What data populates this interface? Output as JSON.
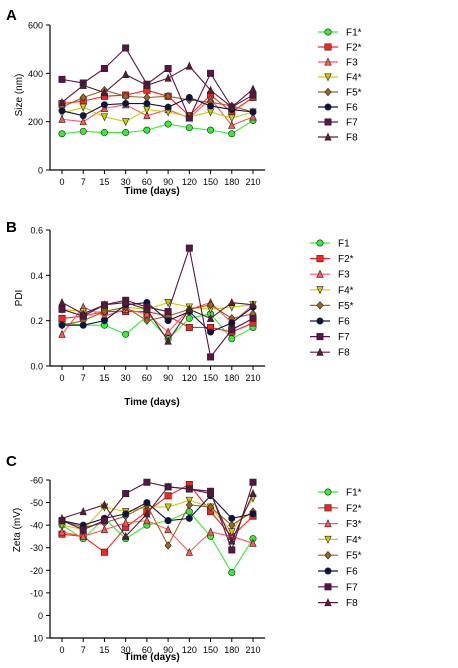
{
  "figure": {
    "x_categories": [
      "0",
      "7",
      "15",
      "30",
      "60",
      "90",
      "120",
      "150",
      "180",
      "210"
    ],
    "series_styles": [
      {
        "color": "#33ee33",
        "marker": "circle"
      },
      {
        "color": "#ff2222",
        "marker": "square"
      },
      {
        "color": "#ff5555",
        "marker": "triangle-up"
      },
      {
        "color": "#cccc00",
        "marker": "triangle-down"
      },
      {
        "color": "#a0641e",
        "marker": "diamond"
      },
      {
        "color": "#0d1445",
        "marker": "circle"
      },
      {
        "color": "#5a1446",
        "marker": "square"
      },
      {
        "color": "#5a1a3a",
        "marker": "triangle-up"
      }
    ]
  },
  "chart_data": [
    {
      "panel_label": "A",
      "type": "line",
      "xlabel": "Time (days)",
      "ylabel": "Size (nm)",
      "ylim": [
        0,
        600
      ],
      "yticks": [
        0,
        200,
        400,
        600
      ],
      "ytick_labels": [
        "0",
        "200",
        "400",
        "600"
      ],
      "categories": [
        "0",
        "7",
        "15",
        "30",
        "60",
        "90",
        "120",
        "150",
        "180",
        "210"
      ],
      "legend_position": "right",
      "series": [
        {
          "name": "F1*",
          "values": [
            150,
            160,
            155,
            155,
            165,
            190,
            175,
            165,
            150,
            205
          ]
        },
        {
          "name": "F2*",
          "values": [
            275,
            285,
            305,
            310,
            330,
            305,
            225,
            310,
            240,
            300
          ]
        },
        {
          "name": "F3",
          "values": [
            210,
            200,
            255,
            270,
            225,
            250,
            215,
            295,
            185,
            220
          ]
        },
        {
          "name": "F4*",
          "values": [
            235,
            260,
            220,
            200,
            250,
            240,
            220,
            240,
            215,
            240
          ]
        },
        {
          "name": "F5*",
          "values": [
            260,
            300,
            330,
            305,
            300,
            305,
            290,
            280,
            265,
            240
          ]
        },
        {
          "name": "F6",
          "values": [
            245,
            225,
            270,
            275,
            275,
            260,
            300,
            265,
            250,
            240
          ]
        },
        {
          "name": "F7",
          "values": [
            375,
            360,
            420,
            505,
            355,
            420,
            215,
            400,
            260,
            310
          ]
        },
        {
          "name": "F8",
          "values": [
            280,
            350,
            320,
            395,
            350,
            380,
            430,
            330,
            260,
            335
          ]
        }
      ]
    },
    {
      "panel_label": "B",
      "type": "line",
      "xlabel": "Time (days)",
      "ylabel": "PDI",
      "ylim": [
        0,
        0.6
      ],
      "yticks": [
        0,
        0.2,
        0.4,
        0.6
      ],
      "ytick_labels": [
        "0.0",
        "0.2",
        "0.4",
        "0.6"
      ],
      "categories": [
        "0",
        "7",
        "15",
        "30",
        "60",
        "90",
        "120",
        "150",
        "180",
        "210"
      ],
      "legend_position": "right",
      "series": [
        {
          "name": "F1",
          "values": [
            0.19,
            0.18,
            0.18,
            0.14,
            0.22,
            0.12,
            0.21,
            0.23,
            0.12,
            0.17
          ]
        },
        {
          "name": "F2*",
          "values": [
            0.21,
            0.22,
            0.24,
            0.24,
            0.24,
            0.22,
            0.17,
            0.17,
            0.15,
            0.19
          ]
        },
        {
          "name": "F3",
          "values": [
            0.14,
            0.26,
            0.22,
            0.25,
            0.23,
            0.15,
            0.25,
            0.28,
            0.19,
            0.27
          ]
        },
        {
          "name": "F4*",
          "values": [
            0.25,
            0.24,
            0.24,
            0.26,
            0.25,
            0.28,
            0.26,
            0.25,
            0.26,
            0.27
          ]
        },
        {
          "name": "F5*",
          "values": [
            0.18,
            0.2,
            0.24,
            0.26,
            0.2,
            0.22,
            0.25,
            0.27,
            0.21,
            0.23
          ]
        },
        {
          "name": "F6",
          "values": [
            0.18,
            0.18,
            0.2,
            0.27,
            0.28,
            0.2,
            0.24,
            0.15,
            0.19,
            0.26
          ]
        },
        {
          "name": "F7",
          "values": [
            0.25,
            0.22,
            0.27,
            0.29,
            0.26,
            0.24,
            0.52,
            0.04,
            0.16,
            0.21
          ]
        },
        {
          "name": "F8",
          "values": [
            0.28,
            0.23,
            0.27,
            0.28,
            0.25,
            0.11,
            0.25,
            0.21,
            0.28,
            0.27
          ]
        }
      ]
    },
    {
      "panel_label": "C",
      "type": "line",
      "xlabel": "Time (days)",
      "ylabel": "Zeta (mV)",
      "ylim": [
        -60,
        10
      ],
      "y_axis_inverted": true,
      "yticks": [
        -60,
        -50,
        -40,
        -30,
        -20,
        -10,
        0,
        10
      ],
      "ytick_labels": [
        "-60",
        "-50",
        "-40",
        "-30",
        "-20",
        "-10",
        "0",
        "10"
      ],
      "categories": [
        "0",
        "7",
        "15",
        "30",
        "60",
        "90",
        "120",
        "150",
        "180",
        "210"
      ],
      "legend_position": "right",
      "series": [
        {
          "name": "F1*",
          "values": [
            -40,
            -34,
            -43,
            -34,
            -40,
            -42,
            -46,
            -35,
            -19,
            -34
          ]
        },
        {
          "name": "F2*",
          "values": [
            -36,
            -35,
            -28,
            -39,
            -46,
            -53,
            -58,
            -46,
            -35,
            -44
          ]
        },
        {
          "name": "F3*",
          "values": [
            -37,
            -35,
            -38,
            -41,
            -42,
            -38,
            -28,
            -37,
            -35,
            -32
          ]
        },
        {
          "name": "F4*",
          "values": [
            -40,
            -38,
            -48,
            -46,
            -48,
            -48,
            -51,
            -48,
            -37,
            -52
          ]
        },
        {
          "name": "F5*",
          "values": [
            -42,
            -39,
            -41,
            -44,
            -49,
            -31,
            -49,
            -48,
            -40,
            -46
          ]
        },
        {
          "name": "F6",
          "values": [
            -42,
            -40,
            -43,
            -45,
            -50,
            -42,
            -43,
            -53,
            -43,
            -45
          ]
        },
        {
          "name": "F7",
          "values": [
            -42,
            -38,
            -42,
            -54,
            -59,
            -57,
            -56,
            -55,
            -29,
            -59
          ]
        },
        {
          "name": "F8",
          "values": [
            -43,
            -46,
            -49,
            -35,
            -45,
            -57,
            -56,
            -54,
            -33,
            -54
          ]
        }
      ]
    }
  ]
}
